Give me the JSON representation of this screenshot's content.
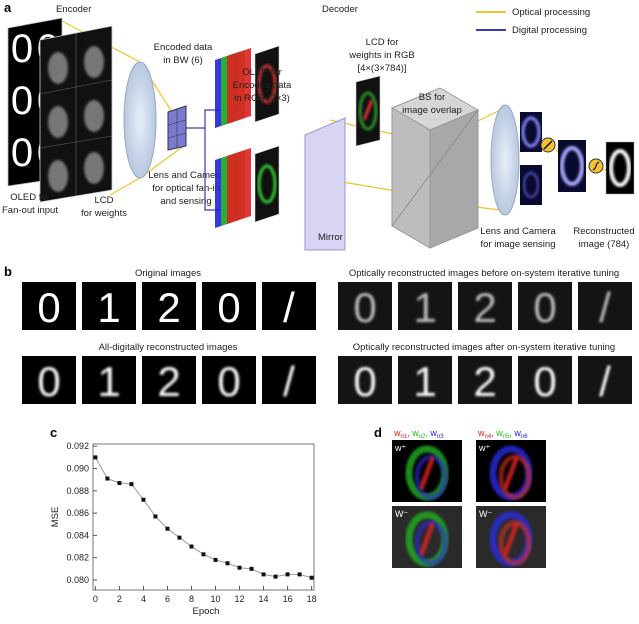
{
  "panel_a": {
    "label": "a",
    "encoder": "Encoder",
    "decoder": "Decoder",
    "legend": [
      {
        "label": "Optical processing",
        "color": "#f2c230"
      },
      {
        "label": "Digital processing",
        "color": "#3a3ab8"
      }
    ],
    "oled_fanout": [
      "OLED for",
      "Fan-out input"
    ],
    "lcd_weights": [
      "LCD",
      "for weights"
    ],
    "encoded_bw": [
      "Encoded data",
      "in BW (6)"
    ],
    "lens_camera_fanin": [
      "Lens and Camera",
      "for optical fan-in",
      "and sensing"
    ],
    "oled_rgb": [
      "OLED for",
      "Encoded data",
      "in RGB (2×3)"
    ],
    "lcd_rgb": [
      "LCD for",
      "weights in RGB",
      "[4×(3×784)]"
    ],
    "bs": [
      "BS for",
      "image overlap"
    ],
    "mirror": "Mirror",
    "lens_camera_sensing": [
      "Lens and Camera",
      "for image sensing"
    ],
    "reconstructed": [
      "Reconstructed",
      "image (784)"
    ],
    "input_digits": [
      "0",
      "0",
      "0",
      "0",
      "0",
      "0"
    ]
  },
  "panel_b": {
    "label": "b",
    "groups": [
      {
        "title": "Original images",
        "digits": [
          "0",
          "1",
          "2",
          "0",
          "/"
        ],
        "blur": 0
      },
      {
        "title": "Optically reconstructed images before on-system iterative tuning",
        "digits": [
          "0",
          "1",
          "2",
          "0",
          "/"
        ],
        "blur": 1.6
      },
      {
        "title": "All-digitally reconstructed images",
        "digits": [
          "0",
          "1",
          "2",
          "0",
          "/"
        ],
        "blur": 1.2
      },
      {
        "title": "Optically reconstructed images after on-system iterative tuning",
        "digits": [
          "0",
          "1",
          "2",
          "0",
          "/"
        ],
        "blur": 1.4
      }
    ]
  },
  "chart_data": {
    "type": "line",
    "panel_label": "c",
    "xlabel": "Epoch",
    "ylabel": "MSE",
    "x": [
      0,
      1,
      2,
      3,
      4,
      5,
      6,
      7,
      8,
      9,
      10,
      11,
      12,
      13,
      14,
      15,
      16,
      17,
      18
    ],
    "values": [
      0.091,
      0.0891,
      0.0887,
      0.0886,
      0.0872,
      0.0857,
      0.0846,
      0.0838,
      0.083,
      0.0823,
      0.0818,
      0.0815,
      0.0811,
      0.081,
      0.0805,
      0.0803,
      0.0805,
      0.0805,
      0.0802
    ],
    "xticks": [
      0,
      2,
      4,
      6,
      8,
      10,
      12,
      14,
      16,
      18
    ],
    "yticks": [
      "0.080",
      "0.082",
      "0.084",
      "0.086",
      "0.088",
      "0.090",
      "0.092"
    ],
    "xlim": [
      -0.2,
      18.2
    ],
    "ylim": [
      0.0791,
      0.0922
    ],
    "marker": "square",
    "line_color": "#999999",
    "grid": false
  },
  "panel_d": {
    "label": "d",
    "columns": [
      {
        "w": [
          {
            "t": "w",
            "s": "n1",
            "c": "#e02020"
          },
          {
            "t": "w",
            "s": "n2",
            "c": "#20c020"
          },
          {
            "t": "w",
            "s": "n3",
            "c": "#2020e0"
          }
        ]
      },
      {
        "w": [
          {
            "t": "w",
            "s": "n4",
            "c": "#e02020"
          },
          {
            "t": "w",
            "s": "n5",
            "c": "#20c020"
          },
          {
            "t": "w",
            "s": "n6",
            "c": "#2020e0"
          }
        ]
      }
    ],
    "w_plus": "w⁺",
    "w_minus": "W⁻"
  }
}
